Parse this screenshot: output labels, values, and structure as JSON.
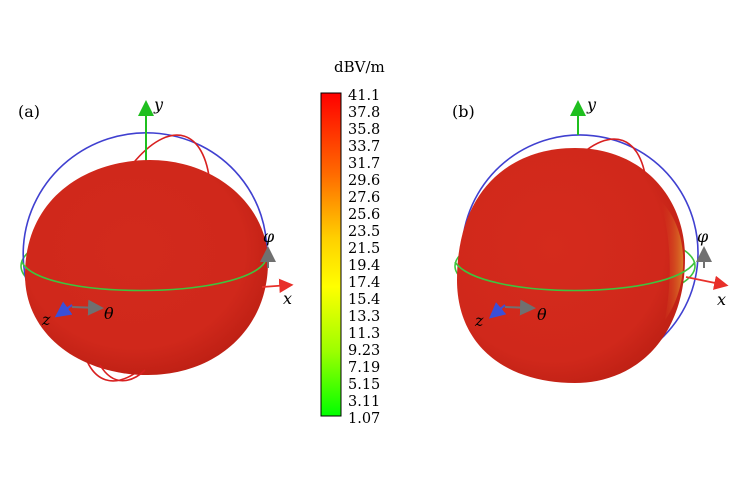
{
  "colorbar": {
    "unit": "dBV/m",
    "ticks": [
      "41.1",
      "37.8",
      "35.8",
      "33.7",
      "31.7",
      "29.6",
      "27.6",
      "25.6",
      "23.5",
      "21.5",
      "19.4",
      "17.4",
      "15.4",
      "13.3",
      "11.3",
      "9.23",
      "7.19",
      "5.15",
      "3.11",
      "1.07"
    ],
    "colors": [
      "#ff0000",
      "#ff8000",
      "#ffff00",
      "#00ff00"
    ]
  },
  "panels": [
    {
      "label": "(a)",
      "axes": {
        "y": "y",
        "x": "x",
        "z": "z",
        "theta": "θ",
        "phi": "φ"
      }
    },
    {
      "label": "(b)",
      "axes": {
        "y": "y",
        "x": "x",
        "z": "z",
        "theta": "θ",
        "phi": "φ"
      }
    }
  ],
  "colors": {
    "sphere": "#d8261a",
    "x_axis": "#e8302a",
    "y_axis": "#1fbf1f",
    "z_axis": "#3b4fd8",
    "ring_xz": "#3ec43e",
    "ring_xy": "#4040d0",
    "ring_yz": "#d82020",
    "arrow_gray": "#707070"
  }
}
